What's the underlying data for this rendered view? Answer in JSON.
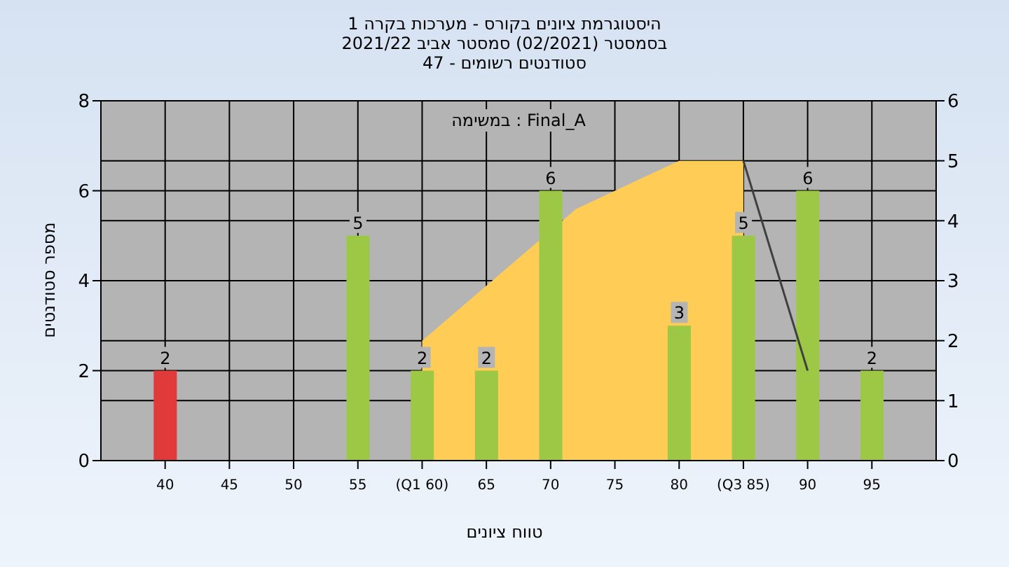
{
  "chart_data": {
    "type": "bar",
    "title": "היסטוגרמת ציונים בקורס - מערכות בקרה 1",
    "subtitle": "בסמסטר  (02/2021)  סמסטר אביב 2021/22\nסטודנטים רשומים - 47",
    "xlabel": "טווח ציונים",
    "ylabel": "מספר סטודנטים",
    "annotations": [
      "Final_A : במשימה"
    ],
    "x": [
      40,
      45,
      50,
      55,
      60,
      65,
      70,
      75,
      80,
      85,
      90,
      95
    ],
    "series": [
      {
        "values": [
          2,
          0,
          0,
          5,
          2,
          2,
          6,
          0,
          3,
          5,
          6,
          2
        ],
        "colors": [
          "#e03a3a",
          "#9cc846",
          "#9cc846",
          "#9cc846",
          "#9cc846",
          "#9cc846",
          "#9cc846",
          "#9cc846",
          "#9cc846",
          "#9cc846",
          "#9cc846",
          "#9cc846"
        ],
        "value_labels": [
          "2",
          null,
          null,
          "5",
          "2",
          "2",
          "6",
          null,
          "3",
          "5",
          "6",
          "2"
        ]
      },
      {
        "type": "area",
        "axis": "y2",
        "color": "#ffcc55",
        "x": [
          60,
          72,
          80,
          85
        ],
        "values": [
          2,
          4.2,
          5,
          5
        ]
      },
      {
        "type": "line",
        "axis": "y2",
        "color": "#404040",
        "x": [
          85,
          90
        ],
        "values": [
          5,
          1.5
        ]
      }
    ],
    "xlim": [
      35,
      100
    ],
    "xticks": [
      40,
      45,
      50,
      55,
      {
        "value": 60,
        "label": "(Q1 60)"
      },
      65,
      70,
      75,
      80,
      {
        "value": 85,
        "label": "(Q3 85)"
      },
      90,
      95
    ],
    "ylim": [
      0,
      8
    ],
    "yticks": [
      0,
      2,
      4,
      6,
      8
    ],
    "y2lim": [
      0,
      6
    ],
    "y2ticks": [
      0,
      1,
      2,
      3,
      4,
      5,
      6
    ],
    "grid": true
  }
}
